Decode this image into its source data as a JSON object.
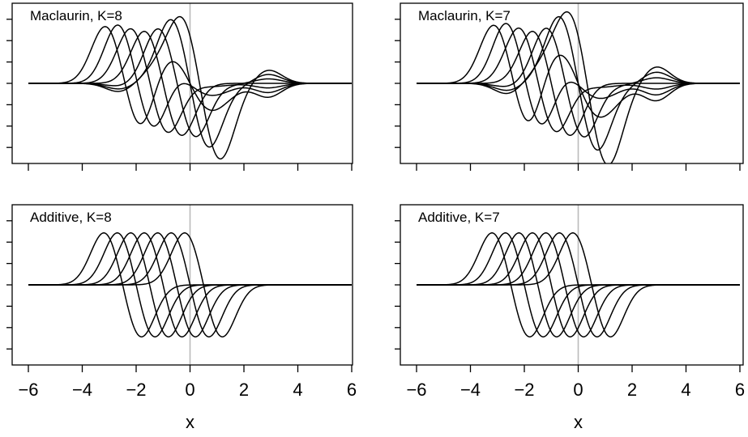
{
  "chart_data": [
    {
      "type": "line",
      "title": "Maclaurin, K=8",
      "method": "maclaurin",
      "K": 8,
      "xlabel": "",
      "ylabel": "",
      "xlim": [
        -6,
        6
      ],
      "x_ticks": [
        -6,
        -4,
        -2,
        0,
        2,
        4,
        6
      ],
      "tick_labels_shown": false,
      "y_tick_count": 7,
      "centers": [
        -2.5,
        -2.0,
        -1.5,
        -1.0,
        -0.5,
        0.0,
        0.5
      ],
      "reference_line_x": 0,
      "grid": false,
      "legend": "none",
      "line_color": "#000000",
      "reference_color": "#bbbbbb"
    },
    {
      "type": "line",
      "title": "Maclaurin, K=7",
      "method": "maclaurin",
      "K": 7,
      "xlabel": "",
      "ylabel": "",
      "xlim": [
        -6,
        6
      ],
      "x_ticks": [
        -6,
        -4,
        -2,
        0,
        2,
        4,
        6
      ],
      "tick_labels_shown": false,
      "y_tick_count": 7,
      "centers": [
        -2.5,
        -2.0,
        -1.5,
        -1.0,
        -0.5,
        0.0,
        0.5
      ],
      "reference_line_x": 0,
      "grid": false,
      "legend": "none",
      "line_color": "#000000",
      "reference_color": "#bbbbbb"
    },
    {
      "type": "line",
      "title": "Additive, K=8",
      "method": "additive",
      "K": 8,
      "xlabel": "x",
      "ylabel": "",
      "xlim": [
        -6,
        6
      ],
      "x_ticks": [
        -6,
        -4,
        -2,
        0,
        2,
        4,
        6
      ],
      "x_tick_labels": [
        "−6",
        "−4",
        "−2",
        "0",
        "2",
        "4",
        "6"
      ],
      "tick_labels_shown": true,
      "y_tick_count": 7,
      "centers": [
        -2.5,
        -2.0,
        -1.5,
        -1.0,
        -0.5,
        0.0,
        0.5
      ],
      "reference_line_x": 0,
      "grid": false,
      "legend": "none",
      "line_color": "#000000",
      "reference_color": "#bbbbbb"
    },
    {
      "type": "line",
      "title": "Additive, K=7",
      "method": "additive",
      "K": 7,
      "xlabel": "x",
      "ylabel": "",
      "xlim": [
        -6,
        6
      ],
      "x_ticks": [
        -6,
        -4,
        -2,
        0,
        2,
        4,
        6
      ],
      "x_tick_labels": [
        "−6",
        "−4",
        "−2",
        "0",
        "2",
        "4",
        "6"
      ],
      "tick_labels_shown": true,
      "y_tick_count": 7,
      "centers": [
        -2.5,
        -2.0,
        -1.5,
        -1.0,
        -0.5,
        0.0,
        0.5
      ],
      "reference_line_x": 0,
      "grid": false,
      "legend": "none",
      "line_color": "#000000",
      "reference_color": "#bbbbbb"
    }
  ]
}
